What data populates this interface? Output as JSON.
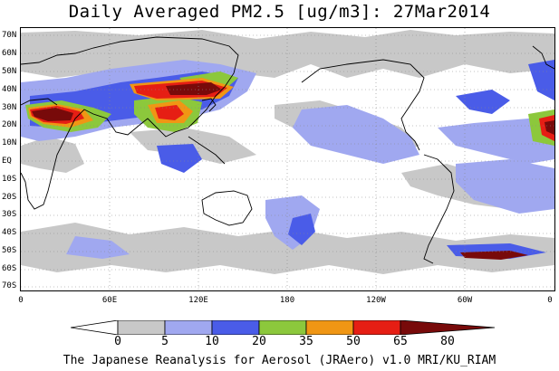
{
  "title": "Daily Averaged PM2.5 [ug/m3]: 27Mar2014",
  "lat_labels": [
    "70N",
    "60N",
    "50N",
    "40N",
    "30N",
    "20N",
    "10N",
    "EQ",
    "10S",
    "20S",
    "30S",
    "40S",
    "50S",
    "60S",
    "70S"
  ],
  "lon_labels": [
    "0",
    "60E",
    "120E",
    "180",
    "120W",
    "60W",
    "0"
  ],
  "colorbar": {
    "levels": [
      "0",
      "5",
      "10",
      "20",
      "35",
      "50",
      "65",
      "80"
    ],
    "colors": [
      "#ffffff",
      "#c8c8c8",
      "#a0a8f0",
      "#4a5ce8",
      "#8cc83c",
      "#f09614",
      "#e61e14",
      "#780a0a"
    ]
  },
  "footer": "The Japanese Reanalysis for Aerosol (JRAero) v1.0 MRI/KU_RIAM"
}
